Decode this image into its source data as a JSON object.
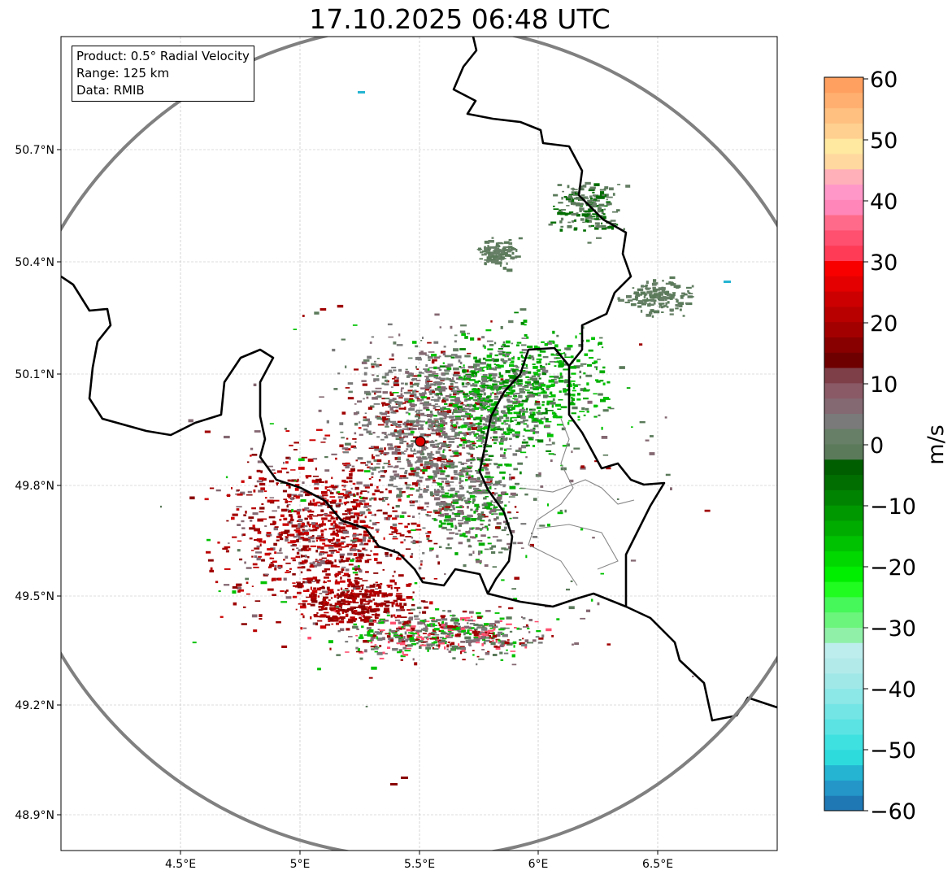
{
  "title": "17.10.2025 06:48 UTC",
  "info_box": [
    "Product: 0.5° Radial Velocity",
    "Range: 125 km",
    "Data: RMIB"
  ],
  "x_ticks": [
    "4.5°E",
    "5°E",
    "5.5°E",
    "6°E",
    "6.5°E"
  ],
  "y_ticks": [
    "50.7°N",
    "50.4°N",
    "50.1°N",
    "49.8°N",
    "49.5°N",
    "49.2°N",
    "48.9°N"
  ],
  "colorbar": {
    "label": "m/s",
    "ticks": [
      "60",
      "50",
      "40",
      "30",
      "20",
      "10",
      "0",
      "−10",
      "−20",
      "−30",
      "−40",
      "−50",
      "−60"
    ],
    "range": [
      -60,
      60
    ],
    "colors_bottom_to_top": [
      "#1f77b4",
      "#2496c8",
      "#25b4d2",
      "#2ddbdd",
      "#3fe0e0",
      "#5be3e3",
      "#73e5e5",
      "#8ce7e7",
      "#a0e8e8",
      "#b2eaea",
      "#beeded",
      "#90f0a8",
      "#6cf57c",
      "#47f85a",
      "#20fb20",
      "#00ee00",
      "#00d800",
      "#00c200",
      "#00ac00",
      "#009800",
      "#008300",
      "#006e00",
      "#005d00",
      "#5a7a5a",
      "#667f66",
      "#7a7a7a",
      "#846872",
      "#8a5a66",
      "#7e3f48",
      "#6e0000",
      "#880000",
      "#a20000",
      "#b80000",
      "#cc0000",
      "#e40000",
      "#f80000",
      "#ff3b56",
      "#ff5070",
      "#ff6a8a",
      "#ff86b8",
      "#ff98c8",
      "#ffb0b8",
      "#ffd8a0",
      "#ffe8a0",
      "#ffd090",
      "#ffc080",
      "#ffb070",
      "#ffa060"
    ]
  },
  "colors": {
    "range_ring": "#808080",
    "border": "#000000",
    "radar_site": "#e00000"
  }
}
